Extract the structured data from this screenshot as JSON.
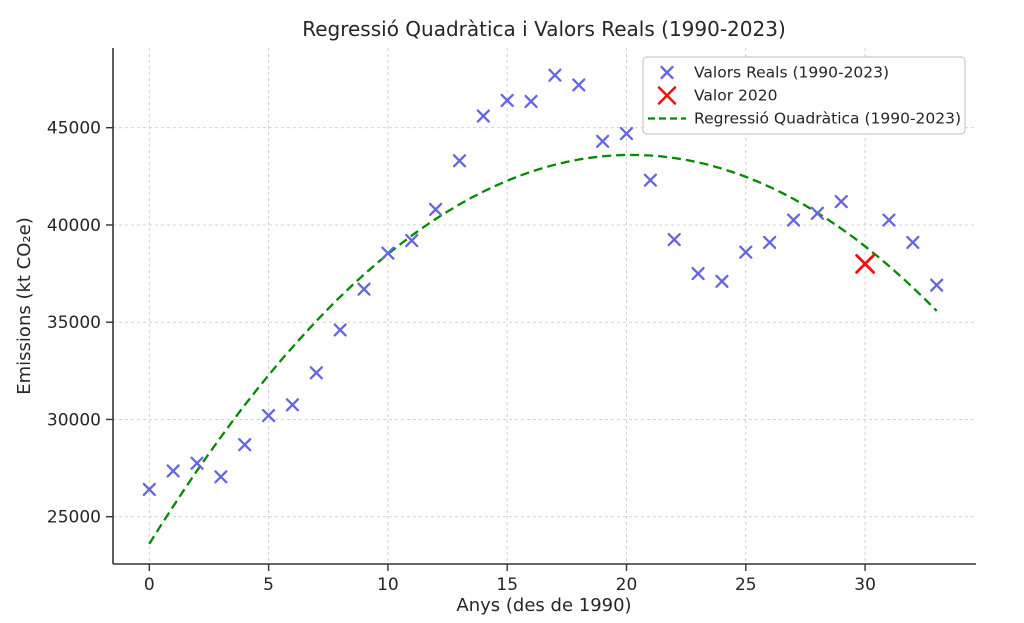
{
  "chart_data": {
    "type": "scatter",
    "title": "Regressió Quadràtica i Valors Reals (1990-2023)",
    "xlabel": "Anys (des de 1990)",
    "ylabel": "Emissions (kt CO₂e)",
    "xlim": [
      -1.5,
      34.6
    ],
    "ylim": [
      22500,
      49100
    ],
    "xticks": [
      0,
      5,
      10,
      15,
      20,
      25,
      30
    ],
    "yticks": [
      25000,
      30000,
      35000,
      40000,
      45000
    ],
    "grid": true,
    "grid_style": "dashed",
    "legend_position": "upper right",
    "series": [
      {
        "name": "Valors Reals (1990-2023)",
        "type": "scatter",
        "marker": "x",
        "color": "#6565e0",
        "x": [
          0,
          1,
          2,
          3,
          4,
          5,
          6,
          7,
          8,
          9,
          10,
          11,
          12,
          13,
          14,
          15,
          16,
          17,
          18,
          19,
          20,
          21,
          22,
          23,
          24,
          25,
          26,
          27,
          28,
          29,
          30,
          31,
          32,
          33
        ],
        "y": [
          26400,
          27350,
          27750,
          27050,
          28700,
          30200,
          30750,
          32400,
          34600,
          36700,
          38550,
          39200,
          40800,
          43300,
          45600,
          46400,
          46350,
          47700,
          47200,
          44300,
          44700,
          42300,
          39250,
          37500,
          37100,
          38600,
          39100,
          40250,
          40600,
          41200,
          38000,
          40250,
          39100,
          36900
        ]
      },
      {
        "name": "Valor 2020",
        "type": "scatter",
        "marker": "X",
        "color": "#ee1111",
        "x": [
          30
        ],
        "y": [
          38000
        ]
      },
      {
        "name": "Regressió Quadràtica (1990-2023)",
        "type": "line",
        "style": "dashed",
        "color": "#008a00",
        "equation": "y = a*x^2 + b*x + c",
        "coefficients": {
          "a": -49.0,
          "b": 1980.0,
          "c": 23600.0
        },
        "x_range": [
          0,
          33
        ],
        "vertex": [
          20.2,
          43600
        ]
      }
    ],
    "legend": [
      "Valors Reals (1990-2023)",
      "Valor 2020",
      "Regressió Quadràtica (1990-2023)"
    ]
  },
  "colors": {
    "background": "#ffffff",
    "scatter_blue": "#6565e0",
    "highlight_red": "#ee1111",
    "regression_green": "#008a00",
    "grid": "#cccccc",
    "spine": "#333333",
    "text": "#262626",
    "legend_border": "#c9c9c9"
  }
}
